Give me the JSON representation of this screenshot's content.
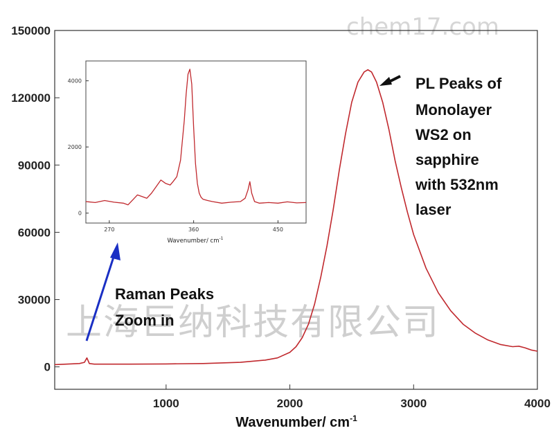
{
  "chart_data": [
    {
      "type": "line",
      "title": "",
      "xlabel": "Wavenumber/ cm",
      "xlabel_sup": "-1",
      "ylabel": "",
      "xlim": [
        100,
        4000
      ],
      "ylim": [
        -10000,
        150000
      ],
      "xticks": [
        1000,
        2000,
        3000,
        4000
      ],
      "xtick_labels": [
        "1000",
        "2000",
        "3000",
        "4000"
      ],
      "yticks": [
        0,
        30000,
        60000,
        90000,
        120000,
        150000
      ],
      "ytick_labels": [
        "0",
        "30000",
        "60000",
        "90000",
        "120000",
        "150000"
      ],
      "grid": false,
      "series": [
        {
          "color": "#c0282d",
          "x": [
            100,
            300,
            340,
            360,
            380,
            420,
            700,
            1000,
            1300,
            1600,
            1800,
            1900,
            2000,
            2050,
            2100,
            2150,
            2200,
            2250,
            2300,
            2350,
            2400,
            2450,
            2500,
            2550,
            2600,
            2630,
            2660,
            2700,
            2750,
            2800,
            2850,
            2900,
            2950,
            3000,
            3100,
            3200,
            3300,
            3400,
            3500,
            3600,
            3700,
            3800,
            3850,
            3900,
            3950,
            4000
          ],
          "y": [
            1000,
            1500,
            2000,
            4000,
            1500,
            1200,
            1200,
            1300,
            1500,
            2000,
            3000,
            4000,
            6500,
            9000,
            13000,
            19000,
            28000,
            40000,
            54000,
            70000,
            88000,
            104000,
            118000,
            127000,
            131500,
            132500,
            131500,
            127000,
            118000,
            106000,
            92000,
            80000,
            69000,
            59000,
            44000,
            33000,
            25000,
            19000,
            15000,
            12000,
            10000,
            9000,
            9200,
            8500,
            7500,
            7000
          ]
        }
      ]
    },
    {
      "type": "line",
      "title": "",
      "xlabel": "Wavenumber/ cm",
      "xlabel_sup": "-1",
      "ylabel": "",
      "xlim": [
        245,
        480
      ],
      "ylim": [
        -300,
        4600
      ],
      "xticks": [
        270,
        360,
        450
      ],
      "xtick_labels": [
        "270",
        "360",
        "450"
      ],
      "yticks": [
        0,
        2000,
        4000
      ],
      "ytick_labels": [
        "0",
        "2000",
        "4000"
      ],
      "grid": false,
      "series": [
        {
          "color": "#c0282d",
          "x": [
            245,
            255,
            265,
            275,
            285,
            290,
            295,
            300,
            305,
            310,
            315,
            320,
            325,
            330,
            335,
            338,
            342,
            346,
            350,
            352,
            354,
            356,
            358,
            360,
            362,
            364,
            366,
            368,
            370,
            375,
            380,
            390,
            400,
            410,
            415,
            418,
            420,
            422,
            425,
            430,
            440,
            450,
            460,
            470,
            480
          ],
          "y": [
            350,
            320,
            380,
            330,
            300,
            250,
            400,
            550,
            500,
            450,
            600,
            800,
            1000,
            900,
            850,
            950,
            1100,
            1600,
            2800,
            3600,
            4200,
            4350,
            3900,
            2600,
            1500,
            900,
            600,
            480,
            420,
            380,
            350,
            300,
            330,
            350,
            450,
            700,
            950,
            600,
            350,
            300,
            320,
            300,
            340,
            310,
            320
          ]
        }
      ]
    }
  ],
  "annotations": {
    "pl_lines": [
      "PL Peaks of",
      "Monolayer",
      "WS2 on",
      "sapphire",
      "with 532nm",
      "laser"
    ],
    "raman_lines": [
      "Raman Peaks",
      "Zoom in"
    ]
  },
  "watermark": {
    "top": "chem17.com",
    "center": "上海巨纳科技有限公司"
  }
}
